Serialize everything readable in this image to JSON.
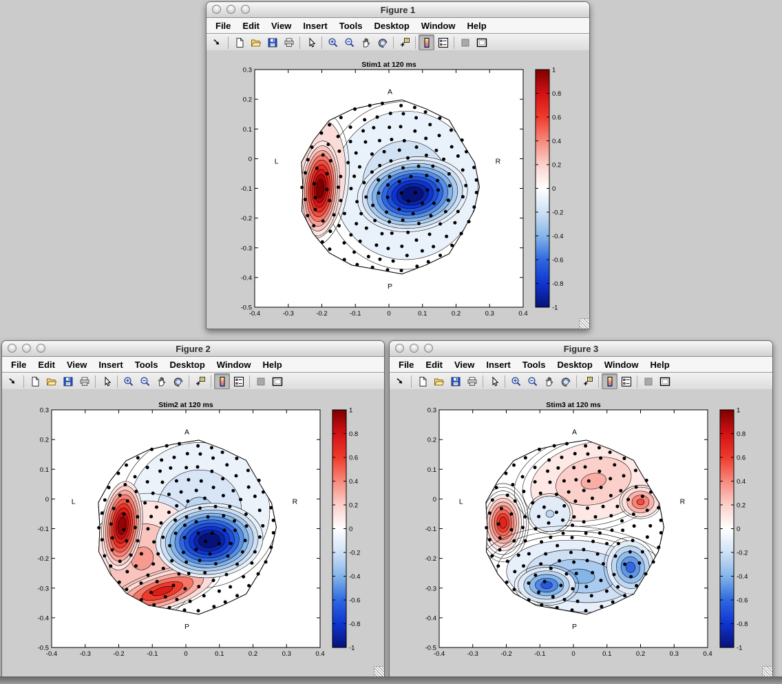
{
  "desktop": {
    "background": "#cbcbcb"
  },
  "menubar": {
    "items": [
      "File",
      "Edit",
      "View",
      "Insert",
      "Tools",
      "Desktop",
      "Window",
      "Help"
    ]
  },
  "toolbar": {
    "buttons": [
      "undock",
      "new-figure",
      "open-file",
      "save-figure",
      "print-figure",
      "pointer",
      "zoom-in",
      "zoom-out",
      "pan",
      "rotate-3d",
      "data-cursor",
      "insert-colorbar",
      "insert-legend",
      "hide-plot-tools",
      "show-plot-tools"
    ],
    "active_button": "insert-colorbar"
  },
  "windows": [
    {
      "title": "Figure 1"
    },
    {
      "title": "Figure 2"
    },
    {
      "title": "Figure 3"
    }
  ],
  "colormap": {
    "positive": [
      [
        0,
        "#ffffff"
      ],
      [
        0.2,
        "#fbd0cb"
      ],
      [
        0.4,
        "#f6897c"
      ],
      [
        0.6,
        "#ef3b2c"
      ],
      [
        0.8,
        "#d31114"
      ],
      [
        1,
        "#7d0000"
      ]
    ],
    "negative": [
      [
        0,
        "#ffffff"
      ],
      [
        0.2,
        "#cfe0f4"
      ],
      [
        0.4,
        "#84b5e9"
      ],
      [
        0.6,
        "#2f68e0"
      ],
      [
        0.8,
        "#0f35cf"
      ],
      [
        1,
        "#071278"
      ]
    ]
  },
  "chart_data": [
    {
      "type": "topographic-contour",
      "title": "Stim1 at 120 ms",
      "xlim": [
        -0.4,
        0.4
      ],
      "ylim": [
        -0.5,
        0.3
      ],
      "xticks": [
        -0.4,
        -0.3,
        -0.2,
        -0.1,
        0,
        0.1,
        0.2,
        0.3,
        0.4
      ],
      "yticks": [
        0.3,
        0.2,
        0.1,
        0,
        -0.1,
        -0.2,
        -0.3,
        -0.4,
        -0.5
      ],
      "orientation_labels": {
        "anterior": "A",
        "posterior": "P",
        "left": "L",
        "right": "R"
      },
      "colorbar": {
        "min": -1,
        "max": 1,
        "ticks": [
          1,
          0.8,
          0.6,
          0.4,
          0.2,
          0,
          -0.2,
          -0.4,
          -0.6,
          -0.8,
          -1
        ]
      },
      "head": {
        "cx": 0,
        "cy": -0.095,
        "rx": 0.267,
        "ry": 0.29
      },
      "electrode_rings": [
        {
          "r": 0,
          "n": 1
        },
        {
          "r": 0.14,
          "n": 6
        },
        {
          "r": 0.28,
          "n": 12
        },
        {
          "r": 0.42,
          "n": 17
        },
        {
          "r": 0.56,
          "n": 23
        },
        {
          "r": 0.7,
          "n": 28
        },
        {
          "r": 0.84,
          "n": 33
        },
        {
          "r": 0.97,
          "n": 37
        }
      ],
      "blobs": [
        {
          "cx": 0.05,
          "cy": -0.09,
          "rx": 0.215,
          "ry": 0.25,
          "peak": -0.28,
          "rings": 3,
          "rot": 0,
          "outlines": 1
        },
        {
          "cx": -0.21,
          "cy": -0.07,
          "rx": 0.08,
          "ry": 0.2,
          "peak": 0.3,
          "rings": 2,
          "rot": 5,
          "outlines": 1
        },
        {
          "cx": -0.205,
          "cy": -0.1,
          "rx": 0.058,
          "ry": 0.16,
          "peak": 1,
          "rings": 9,
          "rot": 4,
          "outlines": 0
        },
        {
          "cx": 0.07,
          "cy": -0.12,
          "rx": 0.165,
          "ry": 0.125,
          "peak": -1,
          "rings": 10,
          "rot": -8,
          "outlines": 0
        }
      ]
    },
    {
      "type": "topographic-contour",
      "title": "Stim2 at 120 ms",
      "xlim": [
        -0.4,
        0.4
      ],
      "ylim": [
        -0.5,
        0.3
      ],
      "xticks": [
        -0.4,
        -0.3,
        -0.2,
        -0.1,
        0,
        0.1,
        0.2,
        0.3,
        0.4
      ],
      "yticks": [
        0.3,
        0.2,
        0.1,
        0,
        -0.1,
        -0.2,
        -0.3,
        -0.4,
        -0.5
      ],
      "orientation_labels": {
        "anterior": "A",
        "posterior": "P",
        "left": "L",
        "right": "R"
      },
      "colorbar": {
        "min": -1,
        "max": 1,
        "ticks": [
          1,
          0.8,
          0.6,
          0.4,
          0.2,
          0,
          -0.2,
          -0.4,
          -0.6,
          -0.8,
          -1
        ]
      },
      "head": {
        "cx": 0,
        "cy": -0.095,
        "rx": 0.267,
        "ry": 0.29
      },
      "electrode_rings": [
        {
          "r": 0,
          "n": 1
        },
        {
          "r": 0.14,
          "n": 6
        },
        {
          "r": 0.28,
          "n": 12
        },
        {
          "r": 0.42,
          "n": 17
        },
        {
          "r": 0.56,
          "n": 23
        },
        {
          "r": 0.7,
          "n": 28
        },
        {
          "r": 0.84,
          "n": 33
        },
        {
          "r": 0.97,
          "n": 37
        }
      ],
      "blobs": [
        {
          "cx": 0.04,
          "cy": -0.04,
          "rx": 0.21,
          "ry": 0.23,
          "peak": -0.25,
          "rings": 3,
          "rot": 0,
          "outlines": 1
        },
        {
          "cx": -0.13,
          "cy": -0.2,
          "rx": 0.16,
          "ry": 0.2,
          "peak": 0.35,
          "rings": 3,
          "rot": 35,
          "outlines": 1
        },
        {
          "cx": -0.07,
          "cy": -0.31,
          "rx": 0.16,
          "ry": 0.06,
          "peak": 0.75,
          "rings": 5,
          "rot": -18,
          "outlines": 1
        },
        {
          "cx": -0.19,
          "cy": -0.09,
          "rx": 0.06,
          "ry": 0.15,
          "peak": 0.95,
          "rings": 9,
          "rot": 6,
          "outlines": 0
        },
        {
          "cx": 0.07,
          "cy": -0.14,
          "rx": 0.16,
          "ry": 0.125,
          "peak": -1,
          "rings": 10,
          "rot": -5,
          "outlines": 0
        }
      ]
    },
    {
      "type": "topographic-contour",
      "title": "Stim3 at 120 ms",
      "xlim": [
        -0.4,
        0.4
      ],
      "ylim": [
        -0.5,
        0.3
      ],
      "xticks": [
        -0.4,
        -0.3,
        -0.2,
        -0.1,
        0,
        0.1,
        0.2,
        0.3,
        0.4
      ],
      "yticks": [
        0.3,
        0.2,
        0.1,
        0,
        -0.1,
        -0.2,
        -0.3,
        -0.4,
        -0.5
      ],
      "orientation_labels": {
        "anterior": "A",
        "posterior": "P",
        "left": "L",
        "right": "R"
      },
      "colorbar": {
        "min": -1,
        "max": 1,
        "ticks": [
          1,
          0.8,
          0.6,
          0.4,
          0.2,
          0,
          -0.2,
          -0.4,
          -0.6,
          -0.8,
          -1
        ]
      },
      "head": {
        "cx": 0,
        "cy": -0.095,
        "rx": 0.267,
        "ry": 0.29
      },
      "electrode_rings": [
        {
          "r": 0,
          "n": 1
        },
        {
          "r": 0.14,
          "n": 6
        },
        {
          "r": 0.28,
          "n": 12
        },
        {
          "r": 0.42,
          "n": 17
        },
        {
          "r": 0.56,
          "n": 23
        },
        {
          "r": 0.7,
          "n": 28
        },
        {
          "r": 0.84,
          "n": 33
        },
        {
          "r": 0.97,
          "n": 37
        }
      ],
      "blobs": [
        {
          "cx": 0.06,
          "cy": 0.06,
          "rx": 0.19,
          "ry": 0.13,
          "peak": 0.3,
          "rings": 3,
          "rot": -12,
          "outlines": 2
        },
        {
          "cx": 0.2,
          "cy": -0.01,
          "rx": 0.055,
          "ry": 0.05,
          "peak": 0.55,
          "rings": 4,
          "rot": 0,
          "outlines": 1
        },
        {
          "cx": -0.21,
          "cy": -0.08,
          "rx": 0.055,
          "ry": 0.095,
          "peak": 0.7,
          "rings": 7,
          "rot": 0,
          "outlines": 3
        },
        {
          "cx": -0.07,
          "cy": -0.05,
          "rx": 0.06,
          "ry": 0.06,
          "peak": -0.25,
          "rings": 2,
          "rot": 0,
          "outlines": 1
        },
        {
          "cx": 0.02,
          "cy": -0.26,
          "rx": 0.22,
          "ry": 0.12,
          "peak": -0.4,
          "rings": 4,
          "rot": 5,
          "outlines": 3
        },
        {
          "cx": -0.08,
          "cy": -0.29,
          "rx": 0.085,
          "ry": 0.06,
          "peak": -0.65,
          "rings": 5,
          "rot": 0,
          "outlines": 1
        },
        {
          "cx": 0.17,
          "cy": -0.23,
          "rx": 0.07,
          "ry": 0.09,
          "peak": -0.6,
          "rings": 5,
          "rot": -10,
          "outlines": 1
        }
      ]
    }
  ]
}
